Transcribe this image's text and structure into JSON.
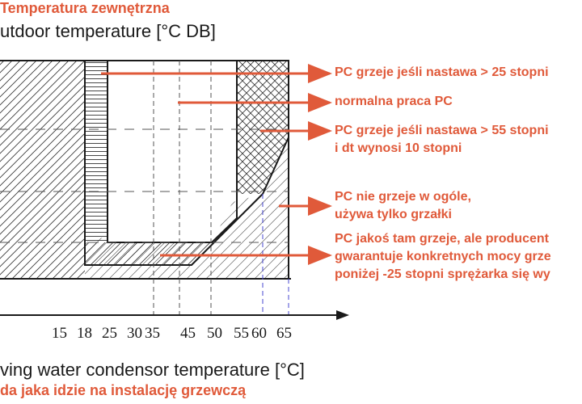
{
  "titles": {
    "y_pl": "Temperatura zewnętrzna",
    "y_en": "utdoor temperature [°C DB]",
    "x_en": "ving water condensor temperature [°C]",
    "x_pl": "da jaka idzie na instalację grzewczą"
  },
  "x_ticks": [
    "15",
    "18",
    "25",
    "30",
    "35",
    "45",
    "50",
    "55",
    "60",
    "65"
  ],
  "annotations": [
    {
      "id": "a1",
      "lines": [
        "PC grzeje jeśli nastawa > 25 stopni"
      ]
    },
    {
      "id": "a2",
      "lines": [
        "normalna praca PC"
      ]
    },
    {
      "id": "a3",
      "lines": [
        "PC grzeje jeśli nastawa > 55 stopni",
        "i dt wynosi 10 stopni"
      ]
    },
    {
      "id": "a4",
      "lines": [
        "PC nie grzeje w ogóle,",
        "używa tylko grzałki"
      ]
    },
    {
      "id": "a5",
      "lines": [
        "PC jakoś tam  grzeje, ale producent",
        "gwarantuje konkretnych mocy grze",
        "poniżej -25 stopni sprężarka się wy"
      ]
    }
  ],
  "colors": {
    "accent": "#e05a3a",
    "line": "#1a1a1a",
    "blue_dash": "#4a4ad0"
  }
}
